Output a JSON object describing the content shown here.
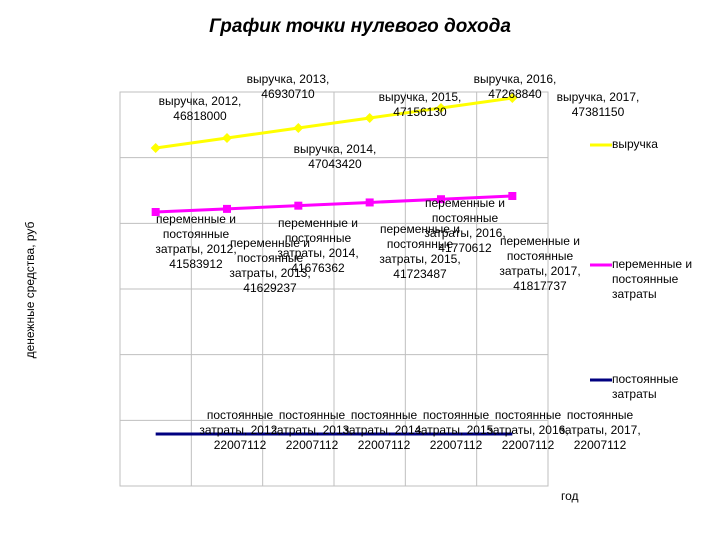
{
  "chart_data": {
    "type": "line",
    "title": "График точки нулевого дохода",
    "xlabel": "год",
    "ylabel": "денежные средства, руб",
    "categories": [
      "2012",
      "2013",
      "2014",
      "2015",
      "2016",
      "2017"
    ],
    "grid": true,
    "legend_position": "right",
    "series": [
      {
        "name": "выручка",
        "color": "#ffff00",
        "values": [
          46818000,
          46930710,
          47043420,
          47156130,
          47268840,
          47381150
        ],
        "labels": [
          "выручка, 2012,\n46818000",
          "выручка, 2013,\n46930710",
          "выручка, 2014,\n47043420",
          "выручка, 2015,\n47156130",
          "выручка, 2016,\n47268840",
          "выручка, 2017,\n47381150"
        ]
      },
      {
        "name": "постоянные затраты",
        "color": "#000080",
        "values": [
          22007112,
          22007112,
          22007112,
          22007112,
          22007112,
          22007112
        ],
        "labels": [
          "постоянные\nзатраты, 2012,\n22007112",
          "постоянные\nзатраты, 2013,\n22007112",
          "постоянные\nзатраты, 2014,\n22007112",
          "постоянные\nзатраты, 2015,\n22007112",
          "постоянные\nзатраты, 2016,\n22007112",
          "постоянные\nзатраты, 2017,\n22007112"
        ]
      },
      {
        "name": "переменные и постоянные затраты",
        "color": "#ff00ff",
        "values": [
          41583912,
          41629237,
          41676362,
          41723487,
          41770612,
          41817737
        ],
        "labels": [
          "переменные и\nпостоянные\nзатраты, 2012,\n41583912",
          "переменные и\nпостоянные\nзатраты, 2013,\n41629237",
          "переменные и\nпостоянные\nзатраты, 2014,\n41676362",
          "переменные и\nпостоянные\nзатраты, 2015,\n41723487",
          "переменные и\nпостоянные\nзатраты, 2016,\n41770612",
          "переменные и\nпостоянные\nзатраты, 2017,\n41817737"
        ]
      }
    ]
  }
}
